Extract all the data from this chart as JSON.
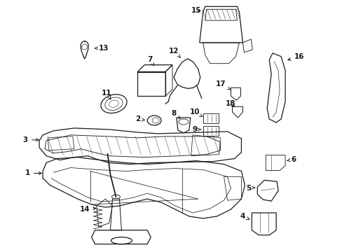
{
  "background_color": "#ffffff",
  "line_color": "#1a1a1a",
  "figsize": [
    4.89,
    3.6
  ],
  "dpi": 100,
  "label_fontsize": 7.5,
  "lw": 0.9
}
